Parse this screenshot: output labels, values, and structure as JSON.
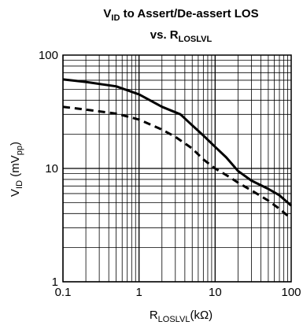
{
  "chart_data": {
    "type": "line",
    "title": {
      "line1_main": "V",
      "line1_sub": "ID",
      "line1_rest": " to Assert/De-assert LOS",
      "line2_main": "vs. R",
      "line2_sub": "LOSLVL"
    },
    "xlabel": {
      "main": "R",
      "sub": "LOSLVL",
      "rest": "(kΩ)"
    },
    "ylabel": {
      "main": "V",
      "sub1": "ID",
      "mid": " (mV",
      "sub2": "pp",
      "rest": ")"
    },
    "x_scale": "log",
    "y_scale": "log",
    "xlim": [
      0.1,
      100
    ],
    "ylim": [
      1,
      100
    ],
    "x_ticks": [
      {
        "value": 0.1,
        "label": "0.1"
      },
      {
        "value": 1,
        "label": "1"
      },
      {
        "value": 10,
        "label": "10"
      },
      {
        "value": 100,
        "label": "100"
      }
    ],
    "y_ticks": [
      {
        "value": 1,
        "label": "1"
      },
      {
        "value": 10,
        "label": "10"
      },
      {
        "value": 100,
        "label": "100"
      }
    ],
    "grid": true,
    "legend": "none",
    "series": [
      {
        "style": "solid",
        "color": "#000000",
        "x": [
          0.1,
          0.2,
          0.5,
          1,
          2,
          3.5,
          5,
          7,
          10,
          14,
          20,
          30,
          50,
          70,
          100
        ],
        "y": [
          61,
          58,
          53,
          45,
          35,
          30,
          24,
          19.5,
          15.5,
          12.5,
          9.5,
          7.8,
          6.6,
          5.8,
          4.7
        ]
      },
      {
        "style": "dashed",
        "color": "#000000",
        "x": [
          0.1,
          0.2,
          0.5,
          1,
          2,
          3,
          5,
          7,
          10,
          15,
          20,
          30,
          50,
          70,
          100
        ],
        "y": [
          35,
          33,
          30.5,
          27,
          22,
          19,
          15,
          12,
          10,
          8.5,
          7.5,
          6.4,
          5.2,
          4.4,
          3.6
        ]
      }
    ]
  }
}
